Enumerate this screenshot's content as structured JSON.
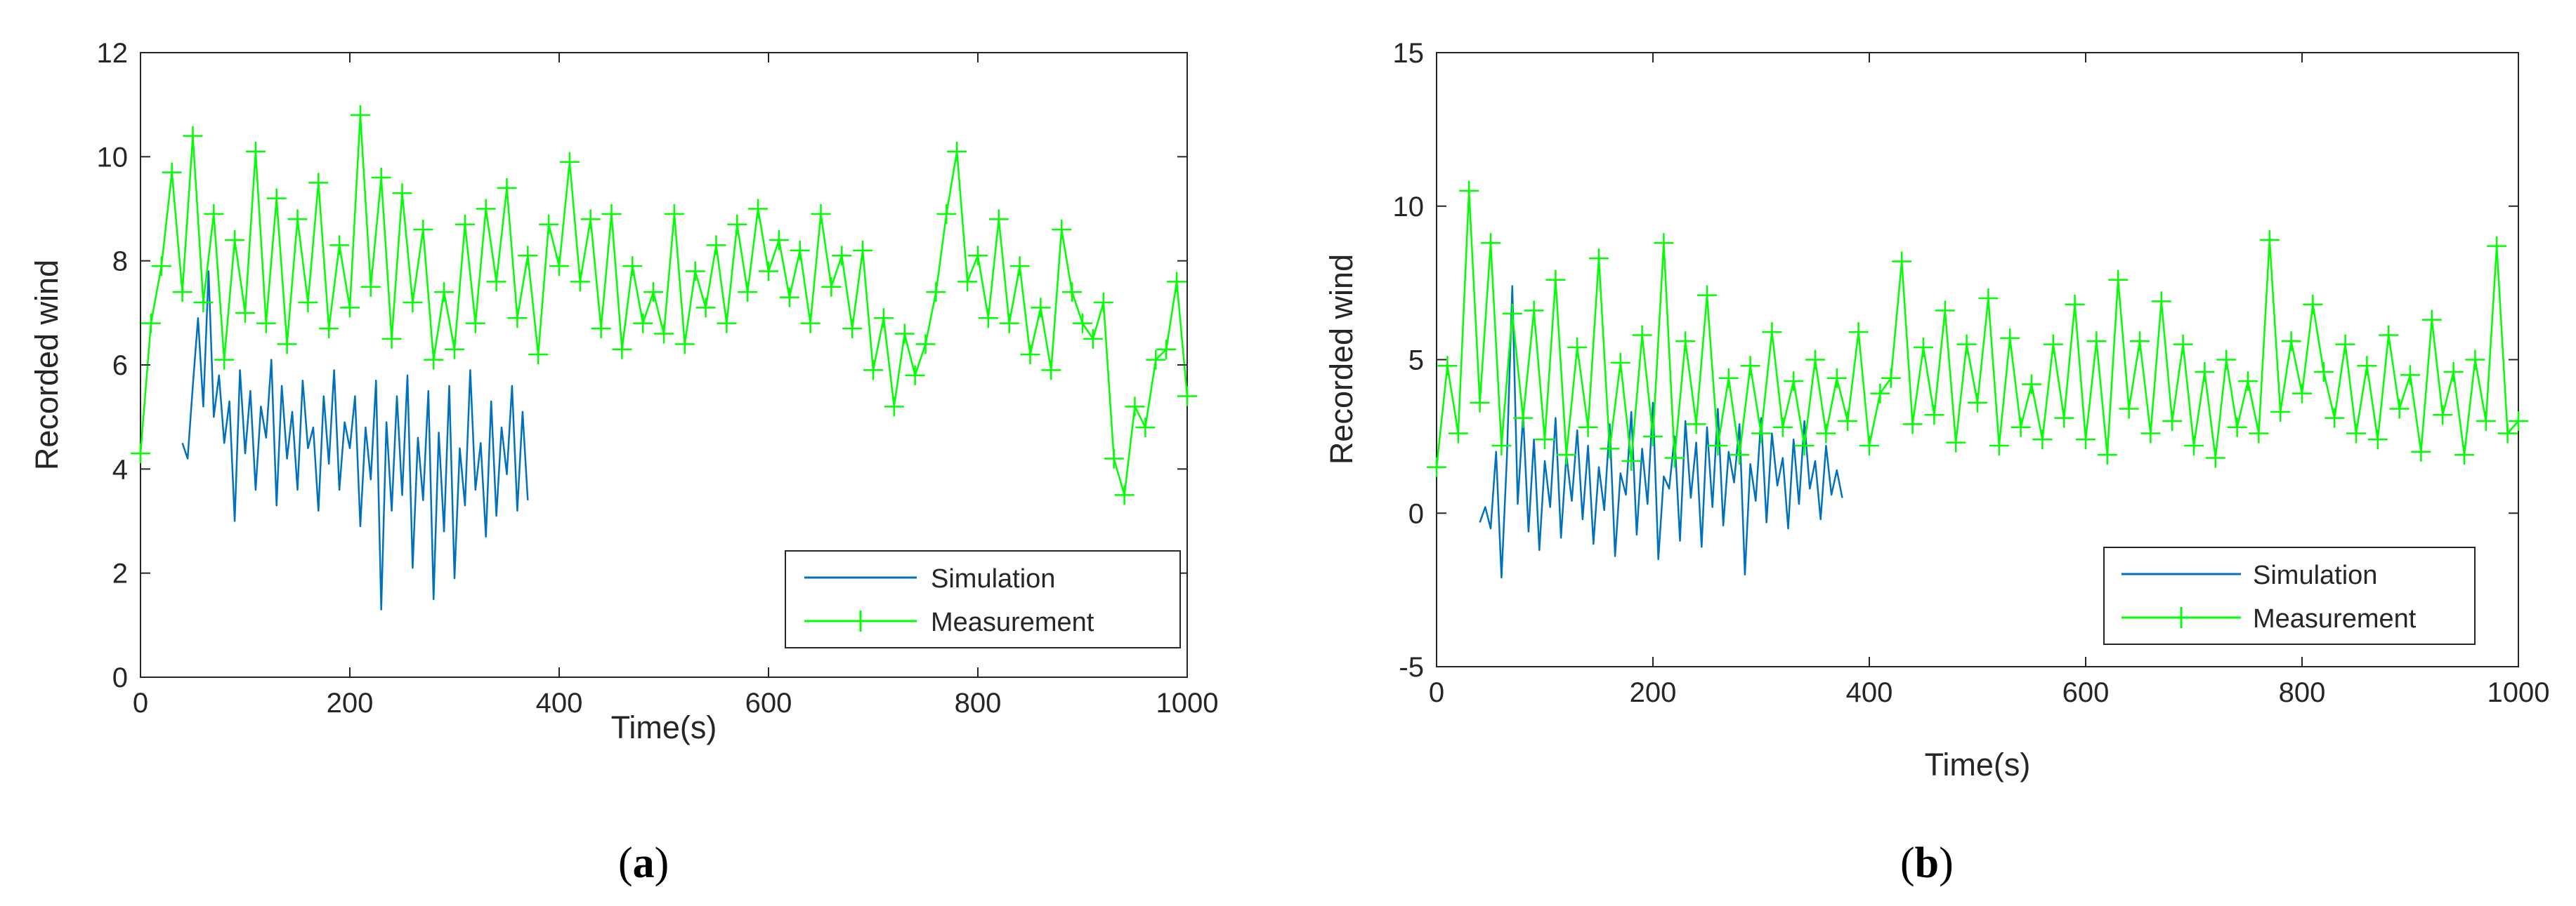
{
  "colors": {
    "simulation": "#0072BD",
    "measurement": "#00FF00",
    "axis": "#262626",
    "background": "#FFFFFF"
  },
  "chart_data": [
    {
      "type": "line",
      "panel_label": {
        "open": "(",
        "letter": "a",
        "close": ")"
      },
      "xlabel": "Time(s)",
      "ylabel": "Recorded wind",
      "xlim": [
        0,
        1000
      ],
      "ylim": [
        0,
        12
      ],
      "xticks": [
        0,
        200,
        400,
        600,
        800,
        1000
      ],
      "yticks": [
        0,
        2,
        4,
        6,
        8,
        10,
        12
      ],
      "legend": {
        "position": "bottom-right",
        "entries": [
          "Simulation",
          "Measurement"
        ]
      },
      "series": [
        {
          "name": "Simulation",
          "style": "line",
          "x": [
            40,
            45,
            50,
            55,
            60,
            65,
            70,
            75,
            80,
            85,
            90,
            95,
            100,
            105,
            110,
            115,
            120,
            125,
            130,
            135,
            140,
            145,
            150,
            155,
            160,
            165,
            170,
            175,
            180,
            185,
            190,
            195,
            200,
            205,
            210,
            215,
            220,
            225,
            230,
            235,
            240,
            245,
            250,
            255,
            260,
            265,
            270,
            275,
            280,
            285,
            290,
            295,
            300,
            305,
            310,
            315,
            320,
            325,
            330,
            335,
            340,
            345,
            350,
            355,
            360,
            365,
            370
          ],
          "y": [
            4.5,
            4.2,
            5.6,
            6.9,
            5.2,
            7.8,
            5.0,
            5.8,
            4.5,
            5.3,
            3.0,
            5.9,
            4.3,
            5.5,
            3.6,
            5.2,
            4.6,
            6.1,
            3.3,
            5.6,
            4.2,
            5.1,
            3.6,
            5.7,
            4.4,
            4.8,
            3.2,
            5.4,
            4.1,
            5.9,
            3.6,
            4.9,
            4.4,
            5.4,
            2.9,
            4.8,
            3.8,
            5.7,
            1.3,
            4.9,
            3.2,
            5.4,
            3.5,
            5.8,
            2.1,
            4.6,
            3.4,
            5.5,
            1.5,
            4.7,
            2.8,
            5.6,
            1.9,
            4.4,
            3.3,
            5.9,
            3.6,
            4.5,
            2.7,
            5.3,
            3.1,
            4.8,
            3.9,
            5.6,
            3.2,
            5.1,
            3.4
          ]
        },
        {
          "name": "Measurement",
          "style": "line+plus-markers",
          "x": [
            0,
            10,
            20,
            30,
            40,
            50,
            60,
            70,
            80,
            90,
            100,
            110,
            120,
            130,
            140,
            150,
            160,
            170,
            180,
            190,
            200,
            210,
            220,
            230,
            240,
            250,
            260,
            270,
            280,
            290,
            300,
            310,
            320,
            330,
            340,
            350,
            360,
            370,
            380,
            390,
            400,
            410,
            420,
            430,
            440,
            450,
            460,
            470,
            480,
            490,
            500,
            510,
            520,
            530,
            540,
            550,
            560,
            570,
            580,
            590,
            600,
            610,
            620,
            630,
            640,
            650,
            660,
            670,
            680,
            690,
            700,
            710,
            720,
            730,
            740,
            750,
            760,
            770,
            780,
            790,
            800,
            810,
            820,
            830,
            840,
            850,
            860,
            870,
            880,
            890,
            900,
            910,
            920,
            930,
            940,
            950,
            960,
            970,
            980,
            990,
            1000
          ],
          "y": [
            4.3,
            6.8,
            7.9,
            9.7,
            7.4,
            10.4,
            7.2,
            8.9,
            6.1,
            8.4,
            7.0,
            10.1,
            6.8,
            9.2,
            6.4,
            8.8,
            7.2,
            9.5,
            6.7,
            8.3,
            7.1,
            10.8,
            7.5,
            9.6,
            6.5,
            9.3,
            7.2,
            8.6,
            6.1,
            7.4,
            6.3,
            8.7,
            6.8,
            9.0,
            7.6,
            9.4,
            6.9,
            8.1,
            6.2,
            8.7,
            7.9,
            9.9,
            7.6,
            8.8,
            6.7,
            8.9,
            6.3,
            7.9,
            6.8,
            7.4,
            6.6,
            8.9,
            6.4,
            7.8,
            7.1,
            8.3,
            6.8,
            8.7,
            7.4,
            9.0,
            7.8,
            8.4,
            7.3,
            8.2,
            6.8,
            8.9,
            7.5,
            8.1,
            6.7,
            8.2,
            5.9,
            6.9,
            5.2,
            6.6,
            5.8,
            6.4,
            7.4,
            8.9,
            10.1,
            7.6,
            8.1,
            6.9,
            8.8,
            6.8,
            7.9,
            6.2,
            7.1,
            5.9,
            8.6,
            7.4,
            6.8,
            6.5,
            7.2,
            4.2,
            3.5,
            5.2,
            4.8,
            6.1,
            6.3,
            7.6,
            5.4
          ]
        }
      ]
    },
    {
      "type": "line",
      "panel_label": {
        "open": "(",
        "letter": "b",
        "close": ")"
      },
      "xlabel": "Time(s)",
      "ylabel": "Recorded wind",
      "xlim": [
        0,
        1000
      ],
      "ylim": [
        -5,
        15
      ],
      "xticks": [
        0,
        200,
        400,
        600,
        800,
        1000
      ],
      "yticks": [
        -5,
        0,
        5,
        10,
        15
      ],
      "legend": {
        "position": "bottom-right",
        "entries": [
          "Simulation",
          "Measurement"
        ]
      },
      "series": [
        {
          "name": "Simulation",
          "style": "line",
          "x": [
            40,
            45,
            50,
            55,
            60,
            65,
            70,
            75,
            80,
            85,
            90,
            95,
            100,
            105,
            110,
            115,
            120,
            125,
            130,
            135,
            140,
            145,
            150,
            155,
            160,
            165,
            170,
            175,
            180,
            185,
            190,
            195,
            200,
            205,
            210,
            215,
            220,
            225,
            230,
            235,
            240,
            245,
            250,
            255,
            260,
            265,
            270,
            275,
            280,
            285,
            290,
            295,
            300,
            305,
            310,
            315,
            320,
            325,
            330,
            335,
            340,
            345,
            350,
            355,
            360,
            365,
            370,
            375
          ],
          "y": [
            -0.3,
            0.2,
            -0.5,
            2.0,
            -2.1,
            1.8,
            7.4,
            0.3,
            3.2,
            -0.6,
            2.4,
            -1.2,
            1.7,
            0.2,
            3.1,
            -0.8,
            1.9,
            0.4,
            2.7,
            -0.2,
            2.2,
            -1.0,
            1.5,
            0.1,
            2.9,
            -1.4,
            1.3,
            0.6,
            3.3,
            -0.7,
            2.1,
            0.3,
            3.6,
            -1.5,
            1.2,
            0.8,
            2.5,
            -0.9,
            3.0,
            0.5,
            2.3,
            -1.1,
            2.8,
            0.2,
            3.4,
            -0.4,
            2.0,
            1.0,
            2.9,
            -2.0,
            1.6,
            0.4,
            3.1,
            -0.3,
            2.6,
            0.9,
            1.8,
            -0.5,
            2.4,
            0.3,
            3.0,
            0.8,
            1.7,
            -0.2,
            2.2,
            0.6,
            1.4,
            0.5
          ]
        },
        {
          "name": "Measurement",
          "style": "line+plus-markers",
          "x": [
            0,
            10,
            20,
            30,
            40,
            50,
            60,
            70,
            80,
            90,
            100,
            110,
            120,
            130,
            140,
            150,
            160,
            170,
            180,
            190,
            200,
            210,
            220,
            230,
            240,
            250,
            260,
            270,
            280,
            290,
            300,
            310,
            320,
            330,
            340,
            350,
            360,
            370,
            380,
            390,
            400,
            410,
            420,
            430,
            440,
            450,
            460,
            470,
            480,
            490,
            500,
            510,
            520,
            530,
            540,
            550,
            560,
            570,
            580,
            590,
            600,
            610,
            620,
            630,
            640,
            650,
            660,
            670,
            680,
            690,
            700,
            710,
            720,
            730,
            740,
            750,
            760,
            770,
            780,
            790,
            800,
            810,
            820,
            830,
            840,
            850,
            860,
            870,
            880,
            890,
            900,
            910,
            920,
            930,
            940,
            950,
            960,
            970,
            980,
            990,
            1000
          ],
          "y": [
            1.5,
            4.8,
            2.6,
            10.5,
            3.6,
            8.8,
            2.2,
            6.5,
            3.1,
            6.6,
            2.4,
            7.6,
            1.9,
            5.4,
            2.8,
            8.3,
            2.1,
            4.9,
            1.7,
            5.8,
            2.5,
            8.8,
            1.8,
            5.6,
            2.9,
            7.1,
            2.2,
            4.4,
            1.9,
            4.8,
            2.6,
            5.9,
            2.8,
            4.3,
            2.2,
            5.0,
            2.6,
            4.4,
            3.0,
            5.9,
            2.2,
            3.9,
            4.4,
            8.2,
            2.9,
            5.4,
            3.2,
            6.6,
            2.3,
            5.5,
            3.6,
            7.0,
            2.2,
            5.7,
            2.8,
            4.2,
            2.4,
            5.5,
            3.1,
            6.8,
            2.4,
            5.6,
            1.9,
            7.6,
            3.4,
            5.6,
            2.6,
            6.9,
            3.0,
            5.5,
            2.2,
            4.6,
            1.8,
            5.0,
            2.8,
            4.3,
            2.6,
            8.9,
            3.3,
            5.6,
            3.9,
            6.8,
            4.6,
            3.1,
            5.5,
            2.6,
            4.8,
            2.4,
            5.8,
            3.4,
            4.5,
            2.0,
            6.3,
            3.2,
            4.6,
            1.9,
            5.0,
            3.0,
            8.7,
            2.6,
            3.0
          ]
        }
      ]
    }
  ]
}
